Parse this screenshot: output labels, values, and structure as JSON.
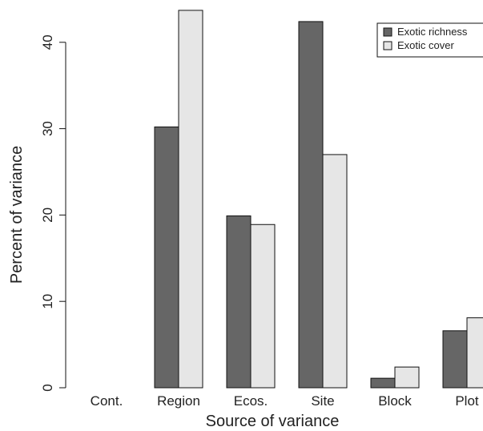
{
  "chart_data": {
    "type": "bar",
    "title": "",
    "xlabel": "Source of variance",
    "ylabel": "Percent of variance",
    "categories": [
      "Cont.",
      "Region",
      "Ecos.",
      "Site",
      "Block",
      "Plot"
    ],
    "series": [
      {
        "name": "Exotic richness",
        "color": "#666666",
        "values": [
          0,
          30.2,
          19.9,
          42.4,
          1.1,
          6.6
        ]
      },
      {
        "name": "Exotic cover",
        "color": "#e6e6e6",
        "values": [
          0,
          43.7,
          18.9,
          27.0,
          2.4,
          8.1
        ]
      }
    ],
    "yticks": [
      0,
      10,
      20,
      30,
      40
    ],
    "ylim": [
      0,
      44
    ],
    "grid": false,
    "legend_position": "top-right"
  }
}
